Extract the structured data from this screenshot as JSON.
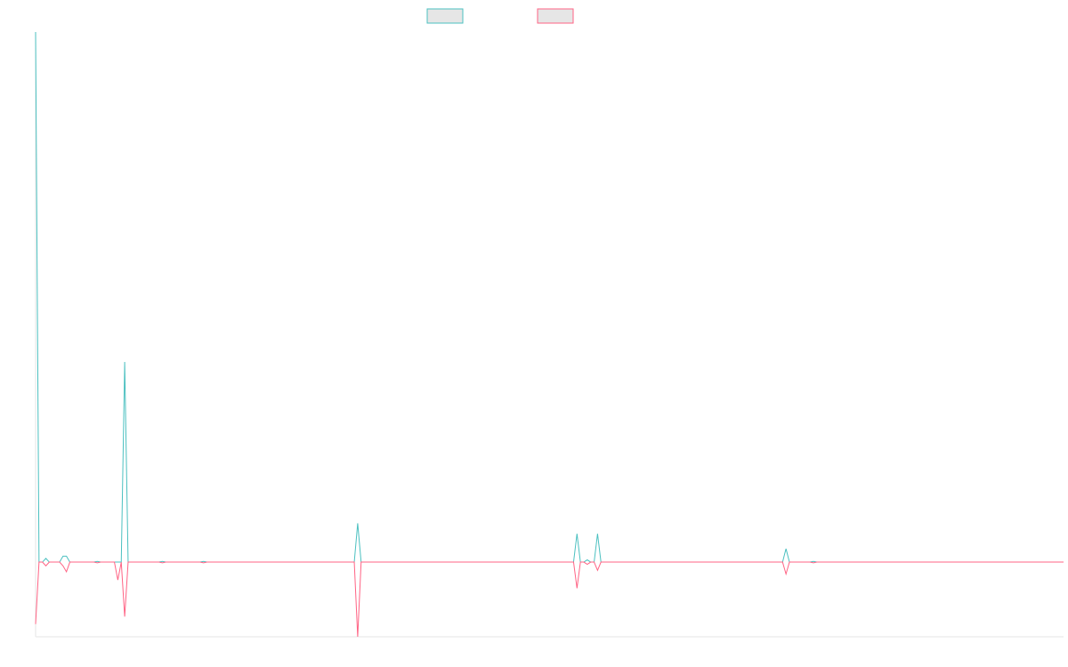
{
  "chart_data": {
    "type": "line",
    "title": "",
    "xlabel": "",
    "ylabel": "",
    "grid": false,
    "legend": "top-center",
    "x": [
      0,
      1,
      2,
      3,
      4,
      5,
      6,
      7,
      8,
      9,
      10,
      11,
      12,
      13,
      14,
      15,
      16,
      17,
      18,
      19,
      20,
      21,
      22,
      23,
      24,
      25,
      26,
      27,
      28,
      29,
      30,
      31,
      32,
      33,
      34,
      35,
      36,
      37,
      38,
      39,
      40,
      41,
      42,
      43,
      44,
      45,
      46,
      47,
      48,
      49,
      50,
      51,
      52,
      53,
      54,
      55,
      56,
      57,
      58,
      59,
      60,
      61,
      62,
      63,
      64,
      65,
      66,
      67,
      68,
      69,
      70,
      71,
      72,
      73,
      74,
      75,
      76,
      77,
      78,
      79,
      80,
      81,
      82,
      83,
      84,
      85,
      86,
      87,
      88,
      89,
      90,
      91,
      92,
      93,
      94,
      95,
      96,
      97,
      98,
      99,
      100,
      101,
      102,
      103,
      104,
      105,
      106,
      107,
      108,
      109,
      110,
      111,
      112,
      113,
      114,
      115,
      116,
      117,
      118,
      119,
      120,
      121,
      122,
      123,
      124,
      125,
      126,
      127,
      128,
      129,
      130,
      131,
      132,
      133,
      134,
      135,
      136,
      137,
      138,
      139,
      140,
      141,
      142,
      143,
      144,
      145,
      146,
      147,
      148,
      149,
      150,
      151,
      152,
      153,
      154,
      155,
      156,
      157,
      158,
      159,
      160,
      161,
      162,
      163,
      164,
      165,
      166,
      167,
      168,
      169,
      170,
      171,
      172,
      173,
      174,
      175,
      176,
      177,
      178,
      179,
      180,
      181,
      182,
      183,
      184,
      185,
      186,
      187,
      188,
      189,
      190,
      191,
      192,
      193,
      194,
      195,
      196,
      197,
      198,
      199,
      200,
      201,
      202,
      203,
      204,
      205,
      206,
      207,
      208,
      209,
      210,
      211,
      212,
      213,
      214,
      215,
      216,
      217,
      218,
      219,
      220,
      221,
      222,
      223,
      224,
      225,
      226,
      227,
      228,
      229,
      230,
      231,
      232,
      233,
      234,
      235,
      236,
      237,
      238,
      239,
      240,
      241,
      242,
      243,
      244,
      245,
      246,
      247,
      248,
      249,
      250,
      251,
      252,
      253,
      254,
      255,
      256,
      257,
      258,
      259,
      260,
      261,
      262,
      263,
      264,
      265,
      266,
      267,
      268,
      269,
      270,
      271,
      272,
      273,
      274,
      275,
      276,
      277,
      278,
      279,
      280,
      281,
      282,
      283,
      284,
      285,
      286,
      287,
      288,
      289,
      290,
      291,
      292,
      293,
      294,
      295,
      296,
      297,
      298,
      299,
      300
    ],
    "ylim": [
      -100,
      710
    ],
    "series": [
      {
        "name": "",
        "color": "#4bc0c0",
        "points": [
          [
            0,
            710
          ],
          [
            1,
            0
          ],
          [
            2,
            0
          ],
          [
            3,
            5
          ],
          [
            4,
            0
          ],
          [
            5,
            0
          ],
          [
            6,
            0
          ],
          [
            7,
            0
          ],
          [
            8,
            8
          ],
          [
            9,
            8
          ],
          [
            10,
            0
          ],
          [
            11,
            0
          ],
          [
            12,
            0
          ],
          [
            13,
            0
          ],
          [
            14,
            0
          ],
          [
            15,
            0
          ],
          [
            16,
            0
          ],
          [
            17,
            0
          ],
          [
            18,
            1
          ],
          [
            19,
            0
          ],
          [
            20,
            0
          ],
          [
            21,
            0
          ],
          [
            22,
            0
          ],
          [
            23,
            0
          ],
          [
            24,
            0
          ],
          [
            25,
            0
          ],
          [
            26,
            268
          ],
          [
            27,
            0
          ],
          [
            28,
            0
          ],
          [
            29,
            0
          ],
          [
            30,
            0
          ],
          [
            31,
            0
          ],
          [
            32,
            0
          ],
          [
            33,
            0
          ],
          [
            34,
            0
          ],
          [
            35,
            0
          ],
          [
            36,
            0
          ],
          [
            37,
            1
          ],
          [
            38,
            0
          ],
          [
            39,
            0
          ],
          [
            40,
            0
          ],
          [
            41,
            0
          ],
          [
            42,
            0
          ],
          [
            43,
            0
          ],
          [
            44,
            0
          ],
          [
            45,
            0
          ],
          [
            46,
            0
          ],
          [
            47,
            0
          ],
          [
            48,
            0
          ],
          [
            49,
            1
          ],
          [
            50,
            0
          ],
          [
            93,
            0
          ],
          [
            94,
            52
          ],
          [
            95,
            0
          ],
          [
            157,
            0
          ],
          [
            158,
            38
          ],
          [
            159,
            0
          ],
          [
            160,
            0
          ],
          [
            161,
            3
          ],
          [
            162,
            0
          ],
          [
            163,
            0
          ],
          [
            164,
            38
          ],
          [
            165,
            0
          ],
          [
            218,
            0
          ],
          [
            219,
            18
          ],
          [
            220,
            0
          ],
          [
            226,
            0
          ],
          [
            227,
            1
          ],
          [
            228,
            0
          ],
          [
            300,
            0
          ]
        ]
      },
      {
        "name": "",
        "color": "#ff6384",
        "points": [
          [
            0,
            -83
          ],
          [
            1,
            0
          ],
          [
            2,
            0
          ],
          [
            3,
            -5
          ],
          [
            4,
            0
          ],
          [
            5,
            0
          ],
          [
            6,
            0
          ],
          [
            7,
            0
          ],
          [
            8,
            -5
          ],
          [
            9,
            -13
          ],
          [
            10,
            0
          ],
          [
            11,
            0
          ],
          [
            12,
            0
          ],
          [
            13,
            0
          ],
          [
            14,
            0
          ],
          [
            15,
            0
          ],
          [
            16,
            0
          ],
          [
            17,
            0
          ],
          [
            18,
            -1
          ],
          [
            19,
            0
          ],
          [
            20,
            0
          ],
          [
            21,
            0
          ],
          [
            22,
            0
          ],
          [
            23,
            0
          ],
          [
            24,
            -24
          ],
          [
            25,
            0
          ],
          [
            26,
            -73
          ],
          [
            27,
            0
          ],
          [
            28,
            0
          ],
          [
            29,
            0
          ],
          [
            30,
            0
          ],
          [
            31,
            0
          ],
          [
            32,
            0
          ],
          [
            33,
            0
          ],
          [
            34,
            0
          ],
          [
            35,
            0
          ],
          [
            36,
            0
          ],
          [
            37,
            -1
          ],
          [
            38,
            0
          ],
          [
            39,
            0
          ],
          [
            40,
            0
          ],
          [
            41,
            0
          ],
          [
            42,
            0
          ],
          [
            43,
            0
          ],
          [
            44,
            0
          ],
          [
            45,
            0
          ],
          [
            46,
            0
          ],
          [
            47,
            0
          ],
          [
            48,
            0
          ],
          [
            49,
            -1
          ],
          [
            50,
            0
          ],
          [
            93,
            0
          ],
          [
            94,
            -100
          ],
          [
            95,
            0
          ],
          [
            157,
            0
          ],
          [
            158,
            -35
          ],
          [
            159,
            0
          ],
          [
            160,
            0
          ],
          [
            161,
            -3
          ],
          [
            162,
            0
          ],
          [
            163,
            0
          ],
          [
            164,
            -11
          ],
          [
            165,
            0
          ],
          [
            218,
            0
          ],
          [
            219,
            -16
          ],
          [
            220,
            0
          ],
          [
            226,
            0
          ],
          [
            227,
            -1
          ],
          [
            228,
            0
          ],
          [
            300,
            0
          ]
        ]
      }
    ]
  }
}
